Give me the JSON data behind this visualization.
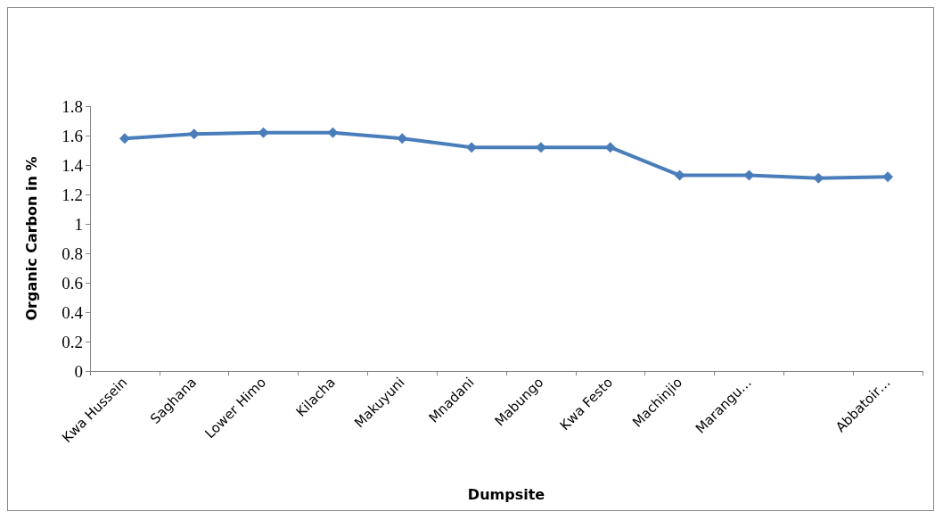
{
  "chart_data": {
    "type": "line",
    "xlabel": "Dumpsite",
    "ylabel": "Organic Carbon in %",
    "categories": [
      "Kwa Hussein",
      "Saghana",
      "Lower Himo",
      "Kilacha",
      "Makuyuni",
      "Mnadani",
      "Mabungo",
      "Kwa Festo",
      "Machinjio",
      "Marangu…",
      null,
      "Abbatoir…"
    ],
    "series": [
      {
        "color": "#4a7ebb",
        "values": [
          1.58,
          1.61,
          1.62,
          1.62,
          1.58,
          1.52,
          1.52,
          1.52,
          1.33,
          1.33,
          1.31,
          1.32
        ]
      }
    ],
    "ylim": [
      0,
      1.8
    ],
    "yticks": [
      0,
      0.2,
      0.4,
      0.6,
      0.8,
      1,
      1.2,
      1.4,
      1.6,
      1.8
    ],
    "grid": false,
    "marker": "diamond",
    "line_style": "solid"
  }
}
